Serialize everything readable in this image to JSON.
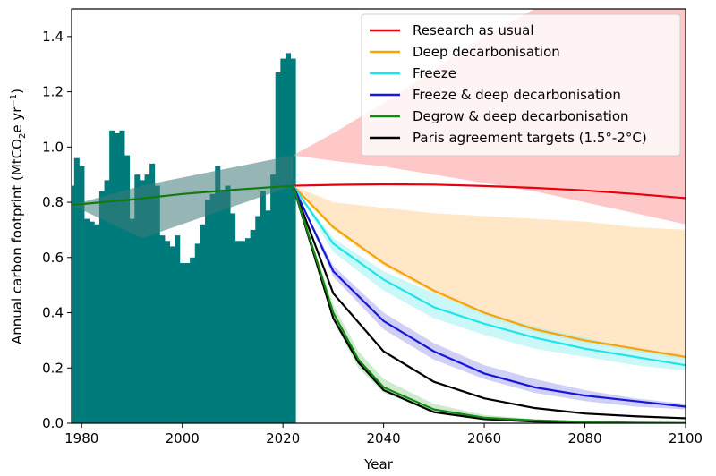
{
  "chart_data": {
    "type": "line",
    "xlabel": "Year",
    "ylabel_main": "Annual carbon footprint (MtCO",
    "ylabel_sub": "2",
    "ylabel_mid": "e yr",
    "ylabel_sup": "−1",
    "ylabel_end": ")",
    "xlim": [
      1978,
      2100
    ],
    "ylim": [
      0,
      1.5
    ],
    "xticks": [
      1980,
      2000,
      2020,
      2040,
      2060,
      2080,
      2100
    ],
    "yticks": [
      0.0,
      0.2,
      0.4,
      0.6,
      0.8,
      1.0,
      1.2,
      1.4
    ],
    "ytick_labels": [
      "0.0",
      "0.2",
      "0.4",
      "0.6",
      "0.8",
      "1.0",
      "1.2",
      "1.4"
    ],
    "grid": false,
    "legend_position": "top-right",
    "historical_bars": {
      "color": "#007b7b",
      "years": [
        1978,
        1979,
        1980,
        1981,
        1982,
        1983,
        1984,
        1985,
        1986,
        1987,
        1988,
        1989,
        1990,
        1991,
        1992,
        1993,
        1994,
        1995,
        1996,
        1997,
        1998,
        1999,
        2000,
        2001,
        2002,
        2003,
        2004,
        2005,
        2006,
        2007,
        2008,
        2009,
        2010,
        2011,
        2012,
        2013,
        2014,
        2015,
        2016,
        2017,
        2018,
        2019,
        2020,
        2021,
        2022
      ],
      "values": [
        0.86,
        0.96,
        0.93,
        0.74,
        0.73,
        0.72,
        0.84,
        0.88,
        1.06,
        1.05,
        1.06,
        0.97,
        0.74,
        0.9,
        0.88,
        0.9,
        0.94,
        0.86,
        0.68,
        0.66,
        0.64,
        0.68,
        0.58,
        0.58,
        0.6,
        0.65,
        0.72,
        0.81,
        0.83,
        0.93,
        0.84,
        0.86,
        0.76,
        0.66,
        0.66,
        0.67,
        0.7,
        0.75,
        0.84,
        0.77,
        0.9,
        1.27,
        1.32,
        1.34,
        1.32
      ]
    },
    "trend_band": {
      "color": "#3f7a7a",
      "x": [
        1978,
        1992,
        2022
      ],
      "upper": [
        0.79,
        0.86,
        0.97
      ],
      "lower": [
        0.79,
        0.67,
        0.86
      ]
    },
    "trend_line": {
      "color": "#107c10",
      "x": [
        1978,
        1990,
        2000,
        2010,
        2022
      ],
      "y": [
        0.79,
        0.81,
        0.83,
        0.845,
        0.86
      ]
    },
    "series": [
      {
        "name": "Research as usual",
        "color": "#e8000b",
        "band_color": "#ff9a9a",
        "x": [
          2022,
          2030,
          2040,
          2050,
          2060,
          2070,
          2080,
          2090,
          2100
        ],
        "y": [
          0.86,
          0.863,
          0.865,
          0.864,
          0.859,
          0.852,
          0.843,
          0.83,
          0.815
        ],
        "upper": [
          0.97,
          1.05,
          1.16,
          1.28,
          1.4,
          1.5,
          1.5,
          1.5,
          1.5
        ],
        "lower": [
          0.97,
          0.95,
          0.93,
          0.9,
          0.87,
          0.84,
          0.8,
          0.76,
          0.72
        ]
      },
      {
        "name": "Deep decarbonisation",
        "color": "#f5a30a",
        "band_color": "#ffd49a",
        "x": [
          2022,
          2030,
          2040,
          2050,
          2060,
          2070,
          2080,
          2090,
          2100
        ],
        "y": [
          0.86,
          0.71,
          0.58,
          0.48,
          0.4,
          0.34,
          0.3,
          0.27,
          0.24
        ],
        "upper": [
          0.86,
          0.8,
          0.78,
          0.76,
          0.75,
          0.74,
          0.73,
          0.71,
          0.7
        ],
        "lower": [
          0.86,
          0.7,
          0.57,
          0.47,
          0.39,
          0.33,
          0.29,
          0.26,
          0.23
        ]
      },
      {
        "name": "Freeze",
        "color": "#1fe3e8",
        "band_color": "#9ff3f3",
        "x": [
          2022,
          2030,
          2040,
          2050,
          2060,
          2070,
          2080,
          2090,
          2100
        ],
        "y": [
          0.86,
          0.65,
          0.52,
          0.42,
          0.36,
          0.31,
          0.27,
          0.24,
          0.21
        ],
        "upper": [
          0.86,
          0.67,
          0.55,
          0.47,
          0.4,
          0.35,
          0.31,
          0.27,
          0.24
        ],
        "lower": [
          0.86,
          0.62,
          0.48,
          0.38,
          0.32,
          0.27,
          0.24,
          0.21,
          0.19
        ]
      },
      {
        "name": "Freeze & deep decarbonisation",
        "color": "#1717d6",
        "band_color": "#aaaaf0",
        "x": [
          2022,
          2030,
          2040,
          2050,
          2060,
          2070,
          2080,
          2090,
          2100
        ],
        "y": [
          0.86,
          0.55,
          0.37,
          0.26,
          0.18,
          0.13,
          0.1,
          0.08,
          0.06
        ],
        "upper": [
          0.86,
          0.57,
          0.4,
          0.29,
          0.21,
          0.16,
          0.12,
          0.09,
          0.07
        ],
        "lower": [
          0.86,
          0.53,
          0.34,
          0.23,
          0.16,
          0.11,
          0.08,
          0.06,
          0.05
        ]
      },
      {
        "name": "Degrow & deep decarbonisation",
        "color": "#128a12",
        "band_color": "#a7d8a7",
        "x": [
          2022,
          2030,
          2035,
          2040,
          2050,
          2060,
          2070,
          2080,
          2090,
          2100
        ],
        "y": [
          0.86,
          0.4,
          0.23,
          0.13,
          0.05,
          0.02,
          0.01,
          0.005,
          0.002,
          0.001
        ],
        "upper": [
          0.86,
          0.43,
          0.26,
          0.16,
          0.07,
          0.03,
          0.015,
          0.008,
          0.004,
          0.002
        ],
        "lower": [
          0.86,
          0.37,
          0.2,
          0.11,
          0.04,
          0.015,
          0.006,
          0.003,
          0.001,
          0.0
        ]
      },
      {
        "name": "Paris agreement targets (1.5°-2°C)",
        "color": "#000000",
        "lines": [
          {
            "x": [
              2022,
              2030,
              2035,
              2040,
              2050,
              2060,
              2070,
              2080,
              2090,
              2100
            ],
            "y": [
              0.86,
              0.38,
              0.22,
              0.12,
              0.04,
              0.015,
              0.006,
              0.003,
              0.001,
              0.0
            ]
          },
          {
            "x": [
              2022,
              2030,
              2040,
              2050,
              2060,
              2070,
              2080,
              2090,
              2100
            ],
            "y": [
              0.86,
              0.47,
              0.26,
              0.15,
              0.09,
              0.055,
              0.035,
              0.025,
              0.018
            ]
          }
        ]
      }
    ]
  }
}
